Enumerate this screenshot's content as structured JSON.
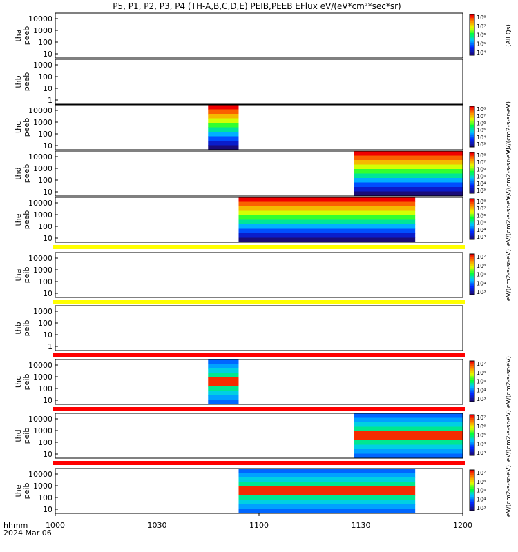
{
  "chart_data": {
    "type": "heatmap",
    "title": "P5, P1, P2, P3, P4 (TH-A,B,C,D,E) PEIB,PEEB EFlux eV/(eV*cm²*sec*sr)",
    "x_ticks": [
      "1000",
      "1030",
      "1100",
      "1130",
      "1200"
    ],
    "x_corner_label": "hhmm",
    "date_label": "2024 Mar 06",
    "panels": [
      {
        "probe": "tha",
        "instrument": "peeb",
        "y_ticks": [
          "10000",
          "1000",
          "100",
          "10"
        ],
        "coverage": [],
        "colorbar": {
          "ticks": [
            "10⁸",
            "10⁷",
            "10⁶",
            "10⁵",
            "10⁴"
          ],
          "label": "(All Qs)"
        }
      },
      {
        "probe": "thb",
        "instrument": "peeb",
        "y_ticks": [
          "1000",
          "100",
          "10",
          "1"
        ],
        "coverage": [],
        "colorbar": null
      },
      {
        "probe": "thc",
        "instrument": "peeb",
        "y_ticks": [
          "10000",
          "1000",
          "100",
          "10"
        ],
        "coverage": [
          {
            "start": "10:45",
            "end": "10:54"
          }
        ],
        "colorbar": {
          "ticks": [
            "10⁸",
            "10⁷",
            "10⁶",
            "10⁵",
            "10⁴",
            "10³"
          ],
          "label": "eV/(cm2-s-sr-eV)"
        }
      },
      {
        "probe": "thd",
        "instrument": "peeb",
        "y_ticks": [
          "10000",
          "1000",
          "100",
          "10"
        ],
        "coverage": [
          {
            "start": "11:28",
            "end": "12:00"
          }
        ],
        "colorbar": {
          "ticks": [
            "10⁸",
            "10⁷",
            "10⁶",
            "10⁵",
            "10⁴",
            "10³"
          ],
          "label": "eV/(cm2-s-sr-eV)"
        }
      },
      {
        "probe": "the",
        "instrument": "peeb",
        "y_ticks": [
          "10000",
          "1000",
          "100",
          "10"
        ],
        "coverage": [
          {
            "start": "10:54",
            "end": "11:46"
          }
        ],
        "colorbar": {
          "ticks": [
            "10⁸",
            "10⁷",
            "10⁶",
            "10⁵",
            "10⁴",
            "10³"
          ],
          "label": "eV/(cm2-s-sr-eV)"
        }
      },
      {
        "probe": "tha",
        "instrument": "peib",
        "y_ticks": [
          "10000",
          "1000",
          "100",
          "10"
        ],
        "coverage": [],
        "colorbar": {
          "ticks": [
            "10⁷",
            "10⁶",
            "10⁵",
            "10⁴",
            "10³"
          ],
          "label": "eV/(cm2-s-sr-eV)"
        }
      },
      {
        "probe": "thb",
        "instrument": "peib",
        "y_ticks": [
          "1000",
          "100",
          "10",
          "1"
        ],
        "coverage": [],
        "colorbar": null
      },
      {
        "probe": "thc",
        "instrument": "peib",
        "y_ticks": [
          "10000",
          "1000",
          "100",
          "10"
        ],
        "coverage": [
          {
            "start": "10:45",
            "end": "10:54"
          }
        ],
        "colorbar": {
          "ticks": [
            "10⁷",
            "10⁶",
            "10⁵",
            "10⁴",
            "10³"
          ],
          "label": "eV/(cm2-s-sr-eV)"
        }
      },
      {
        "probe": "thd",
        "instrument": "peib",
        "y_ticks": [
          "10000",
          "1000",
          "100",
          "10"
        ],
        "coverage": [
          {
            "start": "11:28",
            "end": "12:00"
          }
        ],
        "colorbar": {
          "ticks": [
            "10⁷",
            "10⁶",
            "10⁵",
            "10⁴",
            "10³"
          ],
          "label": "eV/(cm2-s-sr-eV)"
        }
      },
      {
        "probe": "the",
        "instrument": "peib",
        "y_ticks": [
          "10000",
          "1000",
          "100",
          "10"
        ],
        "coverage": [
          {
            "start": "10:54",
            "end": "11:46"
          }
        ],
        "colorbar": {
          "ticks": [
            "10⁷",
            "10⁶",
            "10⁵",
            "10⁴",
            "10³"
          ],
          "label": "eV/(cm2-s-sr-eV)"
        }
      }
    ],
    "status_bars": [
      {
        "after_panel": 4,
        "color": "#ffff00"
      },
      {
        "after_panel": 5,
        "color": "#ffff00"
      },
      {
        "after_panel": 6,
        "color": "#ff0000"
      },
      {
        "after_panel": 7,
        "color": "#ff0000"
      },
      {
        "after_panel": 8,
        "color": "#ff0000"
      }
    ],
    "colors": {
      "low": "#1a0c78",
      "mid": "#00ff00",
      "high": "#ff0000"
    }
  }
}
